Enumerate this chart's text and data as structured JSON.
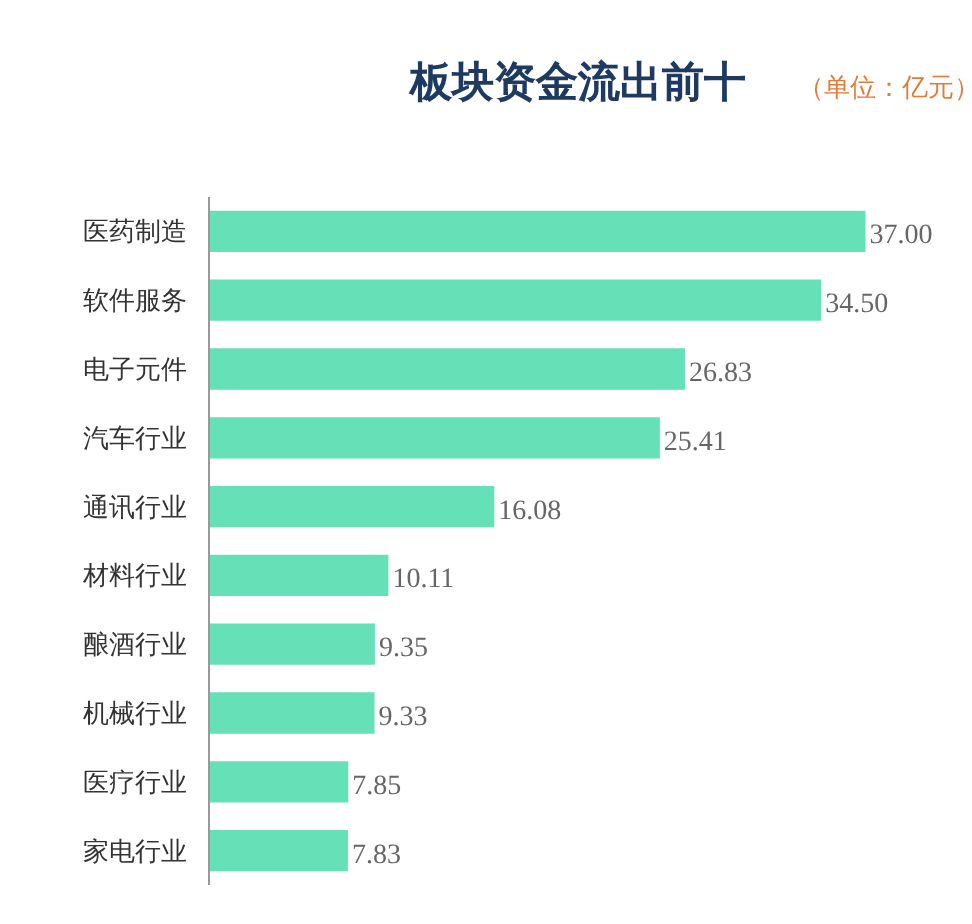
{
  "chart_data": {
    "type": "bar",
    "orientation": "horizontal",
    "title": "板块资金流出前十",
    "subtitle": "（单位：亿元）",
    "categories": [
      "医药制造",
      "软件服务",
      "电子元件",
      "汽车行业",
      "通讯行业",
      "材料行业",
      "酿酒行业",
      "机械行业",
      "医疗行业",
      "家电行业"
    ],
    "values": [
      37.0,
      34.5,
      26.83,
      25.41,
      16.08,
      10.11,
      9.35,
      9.33,
      7.85,
      7.83
    ],
    "value_labels": [
      "37.00",
      "34.50",
      "26.83",
      "25.41",
      "16.08",
      "10.11",
      "9.35",
      "9.33",
      "7.85",
      "7.83"
    ],
    "color": "#66e0b6",
    "grid": false
  }
}
